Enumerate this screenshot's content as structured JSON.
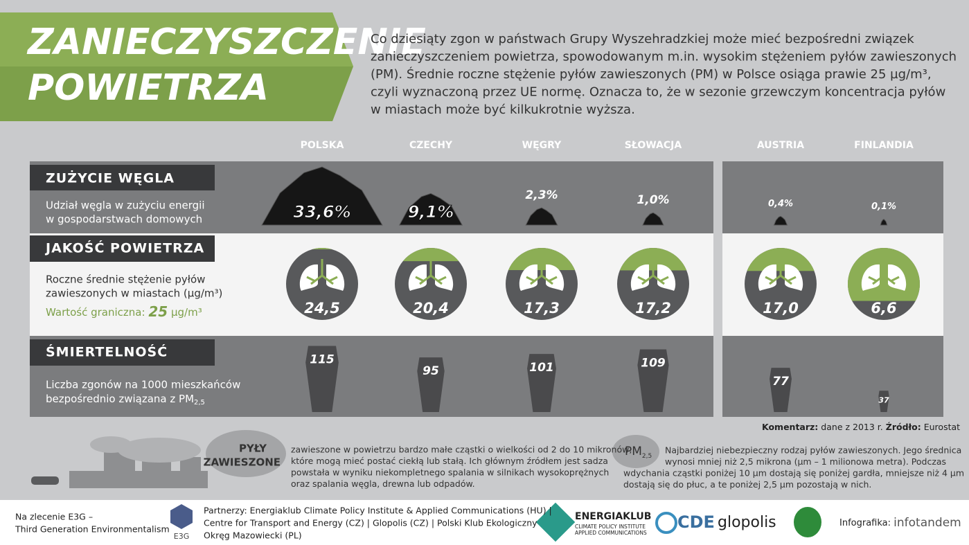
{
  "header": {
    "title_lines": [
      "ZANIECZYSZCZENIE",
      "POWIETRZA"
    ],
    "intro_lines": [
      "Co dziesiąty zgon w państwach Grupy Wyszehradzkiej może mieć bezpośredni związek",
      "zanieczyszczeniem powietrza, spowodowanym m.in. wysokim stężeniem pyłów zawieszonych",
      "(PM). Średnie roczne stężenie pyłów zawieszonych (PM) w Polsce osiąga prawie 25 µg/m³,",
      "czyli wyznaczoną przez UE normę. Oznacza to, że w sezonie grzewczym koncentracja pyłów",
      "w miastach może być kilkukrotnie wyższa."
    ]
  },
  "countries": [
    "POLSKA",
    "CZECHY",
    "WĘGRY",
    "SŁOWACJA",
    "AUSTRIA",
    "FINLANDIA"
  ],
  "coal": {
    "title": "ZUŻYCIE WĘGLA",
    "description_lines": [
      "Udział węgla w zużyciu energii",
      "w gospodarstwach domowych"
    ],
    "values": [
      33.6,
      9.1,
      2.3,
      1.0,
      0.4,
      0.1
    ],
    "value_labels": [
      "33,6%",
      "9,1%",
      "2,3%",
      "1,0%",
      "0,4%",
      "0,1%"
    ]
  },
  "air": {
    "title": "JAKOŚĆ POWIETRZA",
    "description_lines": [
      "Roczne średnie stężenie pyłów",
      "zawieszonych w miastach (µg/m³)"
    ],
    "limit_label": "Wartość graniczna:",
    "limit": 25,
    "limit_unit": "µg/m³",
    "values": [
      24.5,
      20.4,
      17.3,
      17.2,
      17.0,
      6.6
    ],
    "value_labels": [
      "24,5",
      "20,4",
      "17,3",
      "17,2",
      "17,0",
      "6,6"
    ]
  },
  "mortality": {
    "title": "ŚMIERTELNOŚĆ",
    "description_lines": [
      "Liczba zgonów na 1000 mieszkańców",
      "bezpośrednio związana z PM"
    ],
    "description_sub": "2,5",
    "values": [
      115,
      95,
      101,
      109,
      77,
      37
    ]
  },
  "note": {
    "comment_label": "Komentarz:",
    "comment": "dane z 2013 r.",
    "source_label": "Źródło:",
    "source": "Eurostat"
  },
  "glossary": {
    "pm_title_lines": [
      "PYŁY",
      "ZAWIESZONE"
    ],
    "pm_text_lines": [
      "zawieszone w powietrzu bardzo małe cząstki o wielkości od 2 do 10 mikronów,",
      "które mogą mieć postać ciekłą lub stałą. Ich głównym źródłem jest sadza",
      "powstała w wyniku niekompletnego spalania w silnikach wysokoprężnych",
      "oraz spalania węgla, drewna lub odpadów."
    ],
    "pm25_title": "PM",
    "pm25_sub": "2,5",
    "pm25_text_lines": [
      "Najbardziej niebezpieczny rodzaj pyłów zawieszonych. Jego średnica",
      "wynosi mniej niż 2,5 mikrona (µm – 1 milionowa metra). Podczas",
      "wdychania cząstki poniżej 10 µm dostają się poniżej gardła, mniejsze niż 4 µm",
      "dostają się do płuc, a te poniżej 2,5 µm pozostają w nich."
    ]
  },
  "footer": {
    "commission_lines": [
      "Na zlecenie E3G –",
      "Third Generation Environmentalism"
    ],
    "e3g": "E3G",
    "partners_lines": [
      "Partnerzy: Energiaklub Climate Policy Institute & Applied Communications (HU) |",
      "Centre for Transport and Energy (CZ) | Glopolis (CZ) | Polski Klub Ekologiczny",
      "Okręg Mazowiecki (PL)"
    ],
    "energiaklub": "ENERGIAKLUB",
    "energiaklub_sub_lines": [
      "CLIMATE POLICY INSTITUTE",
      "APPLIED COMMUNICATIONS"
    ],
    "cde": "CDE",
    "glopolis": "glopolis",
    "credit_label": "Infografika:",
    "credit": "infotandem"
  }
}
